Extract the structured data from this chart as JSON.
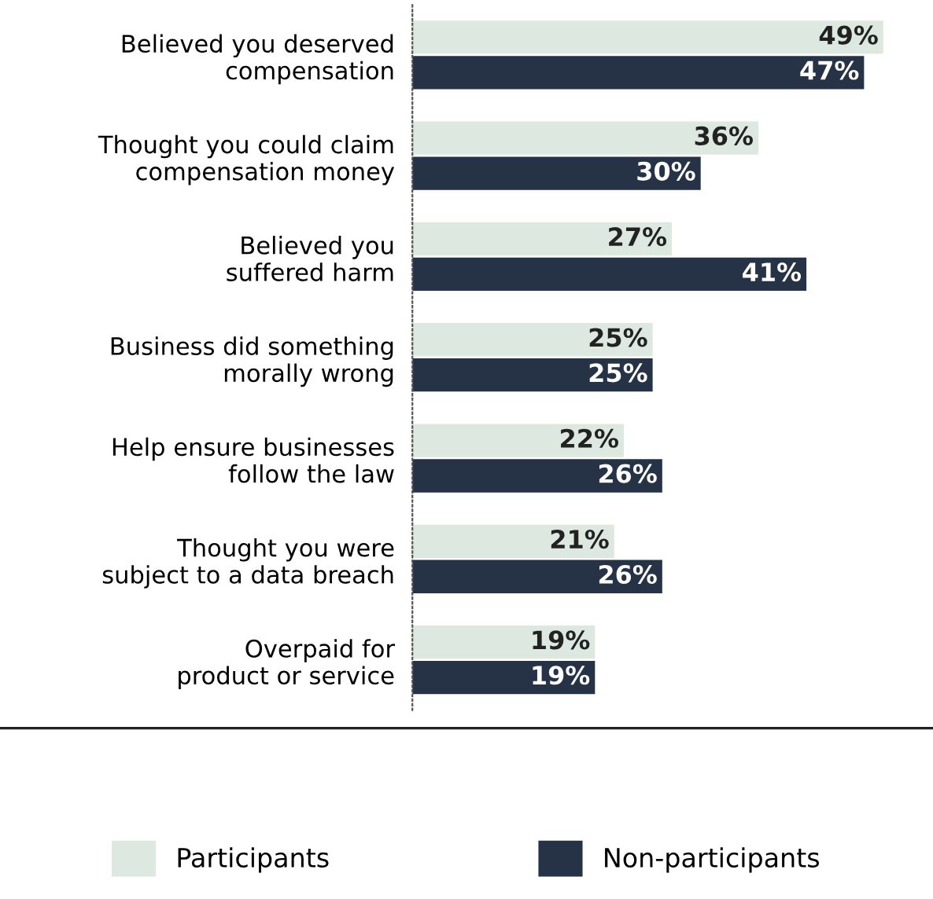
{
  "chart_data": {
    "type": "bar",
    "orientation": "horizontal",
    "categories": [
      "Believed you deserved\ncompensation",
      "Thought you could claim\ncompensation money",
      "Believed you\nsuffered harm",
      "Business did something\nmorally wrong",
      "Help ensure businesses\nfollow the law",
      "Thought you were\nsubject to a data breach",
      "Overpaid for\nproduct or service"
    ],
    "series": [
      {
        "name": "Participants",
        "color": "#dde9e0",
        "values": [
          49,
          36,
          27,
          25,
          22,
          21,
          19
        ],
        "value_labels": [
          "49%",
          "36%",
          "27%",
          "25%",
          "22%",
          "21%",
          "19%"
        ]
      },
      {
        "name": "Non-participants",
        "color": "#263347",
        "values": [
          47,
          30,
          41,
          25,
          26,
          26,
          19
        ],
        "value_labels": [
          "47%",
          "30%",
          "41%",
          "25%",
          "26%",
          "26%",
          "19%"
        ]
      }
    ],
    "legend": "bottom",
    "grid": false
  }
}
